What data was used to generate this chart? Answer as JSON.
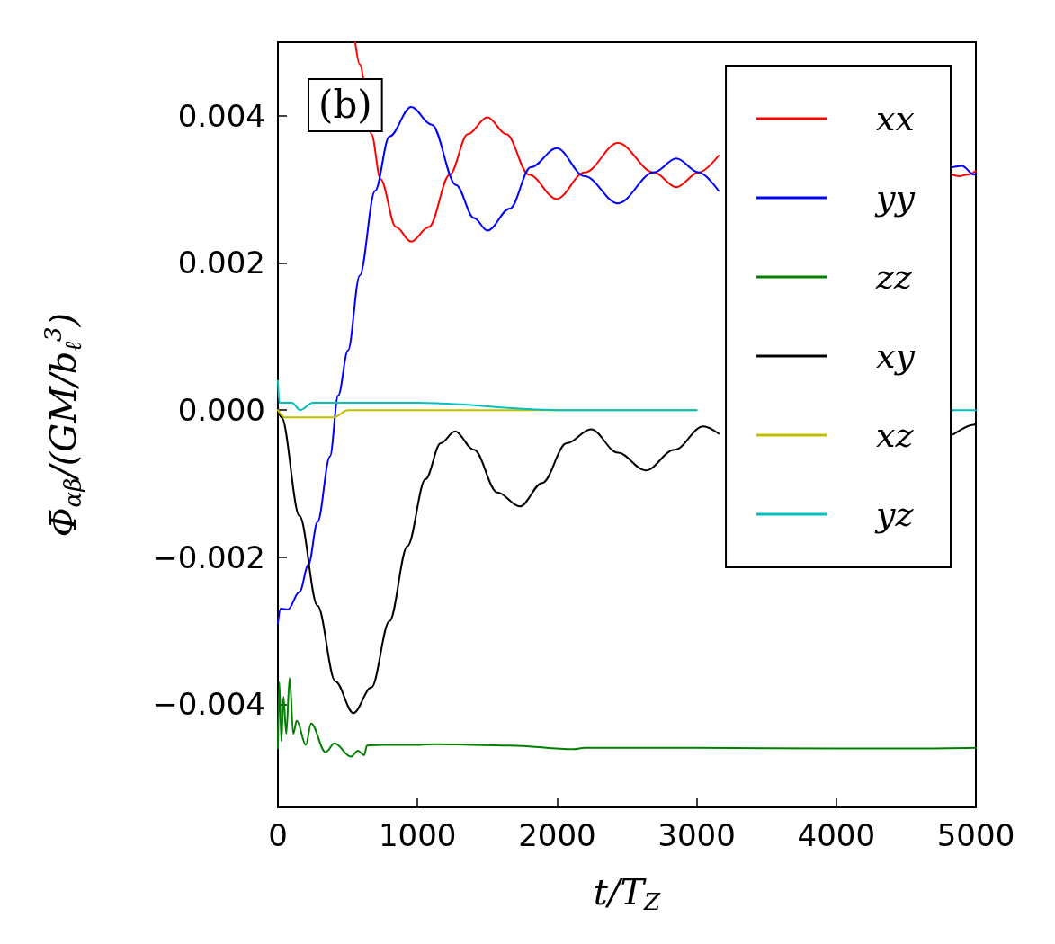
{
  "chart_data": {
    "type": "line",
    "xlabel": "t/T$_{Z}$",
    "ylabel": "Φ̄$_{αβ}$/(GM/b$_{ℓ}$$^{3}$)",
    "annotations": [
      "(b)"
    ],
    "xlim": [
      0,
      5000
    ],
    "xticks": [
      0,
      1000,
      2000,
      3000,
      4000,
      5000
    ],
    "ylim": [
      -0.0054,
      0.005
    ],
    "yticks": [
      -0.004,
      -0.002,
      {
        "value": 0,
        "label": "0.000"
      },
      0.002,
      0.004
    ],
    "grid": false,
    "legend": "top right",
    "series": [
      {
        "name": "xx",
        "color": "#ff0000",
        "x": [
          554,
          586,
          670,
          735,
          845,
          954,
          1082,
          1231,
          1360,
          1500,
          1637,
          1798,
          1997,
          2197,
          2436,
          2693,
          2854,
          3015,
          3157,
          3400,
          4830,
          4880,
          4940,
          5000
        ],
        "values": [
          0.005,
          0.0047,
          0.00375,
          0.00314,
          0.00249,
          0.00229,
          0.00249,
          0.0032,
          0.00375,
          0.00398,
          0.00375,
          0.0032,
          0.00287,
          0.00323,
          0.00363,
          0.00323,
          0.00303,
          0.00323,
          0.00346,
          null,
          0.0032,
          0.00318,
          0.0032,
          0.00325
        ]
      },
      {
        "name": "yy",
        "color": "#0000ff",
        "x": [
          0,
          20,
          71,
          155,
          219,
          284,
          373,
          432,
          502,
          586,
          696,
          799,
          954,
          1102,
          1276,
          1405,
          1501,
          1662,
          1811,
          1997,
          2197,
          2436,
          2693,
          2854,
          3015,
          3157,
          3400,
          4826,
          4900,
          4987,
          5000
        ],
        "values": [
          -0.0029,
          -0.0027,
          -0.00271,
          -0.00247,
          -0.0021,
          -0.00152,
          -0.00063,
          0.0002,
          0.00081,
          0.00183,
          0.00298,
          0.00372,
          0.00412,
          0.00388,
          0.00306,
          0.00261,
          0.00244,
          0.00274,
          0.0033,
          0.00356,
          0.00318,
          0.00281,
          0.00323,
          0.00342,
          0.00323,
          0.00298,
          null,
          0.0033,
          0.00332,
          0.0032,
          0.00322
        ]
      },
      {
        "name": "zz",
        "color": "#008000",
        "x": [
          0,
          10,
          25,
          40,
          60,
          84,
          110,
          135,
          200,
          238,
          341,
          406,
          522,
          573,
          618,
          638,
          760,
          1018,
          1121,
          1662,
          2120,
          2197,
          3000,
          4000,
          4500,
          5000
        ],
        "values": [
          -0.0046,
          -0.0037,
          -0.0045,
          -0.0039,
          -0.0044,
          -0.00364,
          -0.0044,
          -0.00422,
          -0.00455,
          -0.00426,
          -0.00465,
          -0.00453,
          -0.00471,
          -0.00463,
          -0.00469,
          -0.00456,
          -0.00455,
          -0.00455,
          -0.00454,
          -0.00456,
          -0.00461,
          -0.00459,
          -0.00459,
          -0.0046,
          -0.0046,
          -0.00459
        ]
      },
      {
        "name": "xy",
        "color": "#000000",
        "x": [
          0,
          26,
          155,
          284,
          412,
          541,
          670,
          799,
          928,
          1057,
          1166,
          1269,
          1405,
          1572,
          1733,
          1894,
          2068,
          2242,
          2436,
          2635,
          2841,
          3047,
          3157,
          3400,
          4839,
          4987,
          5000
        ],
        "values": [
          0.0,
          -0.0001,
          -0.00144,
          -0.00266,
          -0.00369,
          -0.00412,
          -0.00377,
          -0.00287,
          -0.00185,
          -0.00094,
          -0.00045,
          -0.00029,
          -0.00054,
          -0.00112,
          -0.00131,
          -0.00099,
          -0.00045,
          -0.00026,
          -0.00058,
          -0.00082,
          -0.00054,
          -0.00022,
          -0.00032,
          null,
          -0.00033,
          -0.0002,
          -0.00017
        ]
      },
      {
        "name": "xz",
        "color": "#bfbf00",
        "x": [
          0,
          50,
          200,
          400,
          500,
          1000,
          2000,
          3000
        ],
        "values": [
          0.0,
          -0.0001,
          -0.0001,
          -0.0001,
          0.0,
          0.0,
          0.0,
          0.0
        ]
      },
      {
        "name": "yz",
        "color": "#00bfbf",
        "x": [
          0,
          10,
          30,
          50,
          100,
          160,
          250,
          430,
          1000,
          2000,
          3000,
          3400,
          4830,
          5000
        ],
        "values": [
          0.0004,
          0.0001,
          0.0001,
          0.0001,
          0.0001,
          0.0,
          0.0001,
          0.0001,
          0.0001,
          0.0,
          0.0,
          null,
          0.0,
          0.0
        ]
      }
    ]
  }
}
